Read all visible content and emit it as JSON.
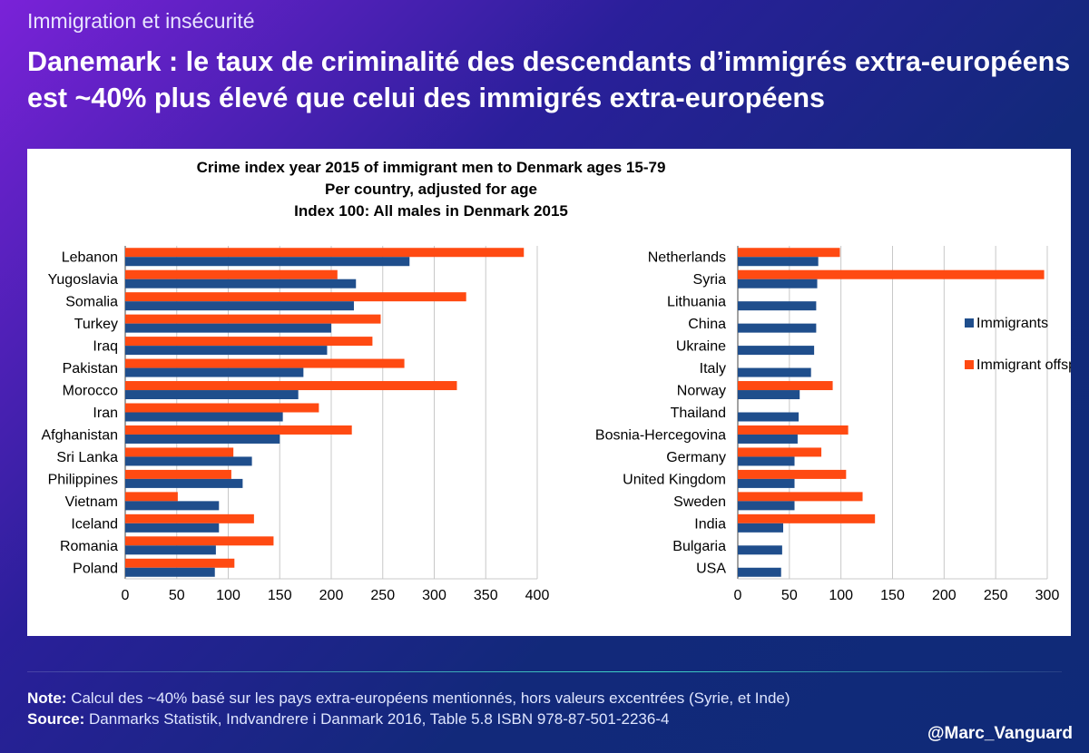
{
  "header": {
    "category": "Immigration et insécurité",
    "title": "Danemark : le taux de criminalité des descendants d’immigrés extra-européens est ~40% plus élevé que celui des immigrés extra-européens"
  },
  "footer": {
    "note_label": "Note:",
    "note_text": "Calcul des ~40% basé sur les pays extra-européens mentionnés, hors valeurs excentrées (Syrie, et Inde)",
    "source_label": "Source:",
    "source_text": "Danmarks Statistik, Indvandrere i Danmark 2016, Table 5.8 ISBN 978-87-501-2236-4",
    "handle": "@Marc_Vanguard"
  },
  "colors": {
    "immigrants": "#1f4e8c",
    "offspring": "#ff4a12"
  },
  "chart_data": {
    "type": "bar",
    "orientation": "horizontal",
    "title_lines": [
      "Crime index year 2015 of immigrant men to Denmark ages 15-79",
      "Per country, adjusted for age",
      "Index 100: All males in Denmark 2015"
    ],
    "legend": {
      "placement": "right",
      "entries": [
        "Immigrants",
        "Immigrant offspring"
      ]
    },
    "panels": [
      {
        "categories": [
          "Lebanon",
          "Yugoslavia",
          "Somalia",
          "Turkey",
          "Iraq",
          "Pakistan",
          "Morocco",
          "Iran",
          "Afghanistan",
          "Sri Lanka",
          "Philippines",
          "Vietnam",
          "Iceland",
          "Romania",
          "Poland"
        ],
        "series": [
          {
            "name": "Immigrants",
            "values": [
              276,
              224,
              222,
              200,
              196,
              173,
              168,
              153,
              150,
              123,
              114,
              91,
              91,
              88,
              87
            ]
          },
          {
            "name": "Immigrant offspring",
            "values": [
              387,
              206,
              331,
              248,
              240,
              271,
              322,
              188,
              220,
              105,
              103,
              51,
              125,
              144,
              106
            ]
          }
        ],
        "xlim": [
          0,
          400
        ],
        "xticks": [
          0,
          50,
          100,
          150,
          200,
          250,
          300,
          350,
          400
        ]
      },
      {
        "categories": [
          "Netherlands",
          "Syria",
          "Lithuania",
          "China",
          "Ukraine",
          "Italy",
          "Norway",
          "Thailand",
          "Bosnia-Hercegovina",
          "Germany",
          "United Kingdom",
          "Sweden",
          "India",
          "Bulgaria",
          "USA"
        ],
        "series": [
          {
            "name": "Immigrants",
            "values": [
              78,
              77,
              76,
              76,
              74,
              71,
              60,
              59,
              58,
              55,
              55,
              55,
              44,
              43,
              42
            ]
          },
          {
            "name": "Immigrant offspring",
            "values": [
              99,
              297,
              null,
              null,
              null,
              null,
              92,
              null,
              107,
              81,
              105,
              121,
              133,
              null,
              null
            ]
          }
        ],
        "xlim": [
          0,
          300
        ],
        "xticks": [
          0,
          50,
          100,
          150,
          200,
          250,
          300
        ]
      }
    ]
  }
}
